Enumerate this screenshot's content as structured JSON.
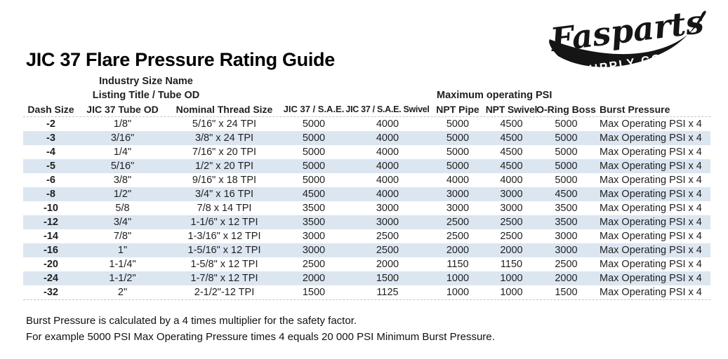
{
  "logo": {
    "brand": "Fasparts",
    "subtitle": "SUPPLY CO."
  },
  "title": "JIC 37 Flare Pressure Rating Guide",
  "table": {
    "stack_lines": [
      "Industry Size Name",
      "Listing Title / Tube OD"
    ],
    "psi_group_label": "Maximum operating PSI",
    "columns": [
      "Dash Size",
      "JIC 37 Tube OD",
      "Nominal Thread Size",
      "JIC 37 / S.A.E.",
      "JIC 37 / S.A.E. Swivel",
      "NPT Pipe",
      "NPT Swivel",
      "O-Ring Boss",
      "Burst Pressure"
    ],
    "rows": [
      [
        "-2",
        "1/8\"",
        "5/16\" x 24 TPI",
        "5000",
        "4000",
        "5000",
        "4500",
        "5000",
        "Max Operating PSI x 4"
      ],
      [
        "-3",
        "3/16\"",
        "3/8\" x 24 TPI",
        "5000",
        "4000",
        "5000",
        "4500",
        "5000",
        "Max Operating PSI x 4"
      ],
      [
        "-4",
        "1/4\"",
        "7/16\" x 20 TPI",
        "5000",
        "4000",
        "5000",
        "4500",
        "5000",
        "Max Operating PSI x 4"
      ],
      [
        "-5",
        "5/16\"",
        "1/2\" x 20 TPI",
        "5000",
        "4000",
        "5000",
        "4500",
        "5000",
        "Max Operating PSI x 4"
      ],
      [
        "-6",
        "3/8\"",
        "9/16\" x 18 TPI",
        "5000",
        "4000",
        "4000",
        "4000",
        "5000",
        "Max Operating PSI x 4"
      ],
      [
        "-8",
        "1/2\"",
        "3/4\" x 16 TPI",
        "4500",
        "4000",
        "3000",
        "3000",
        "4500",
        "Max Operating PSI x 4"
      ],
      [
        "-10",
        "5/8",
        "7/8 x 14 TPI",
        "3500",
        "3000",
        "3000",
        "3000",
        "3500",
        "Max Operating PSI x 4"
      ],
      [
        "-12",
        "3/4\"",
        "1-1/6\" x 12 TPI",
        "3500",
        "3000",
        "2500",
        "2500",
        "3500",
        "Max Operating PSI x 4"
      ],
      [
        "-14",
        "7/8\"",
        "1-3/16\" x 12 TPI",
        "3000",
        "2500",
        "2500",
        "2500",
        "3000",
        "Max Operating PSI x 4"
      ],
      [
        "-16",
        "1\"",
        "1-5/16\" x 12 TPI",
        "3000",
        "2500",
        "2000",
        "2000",
        "3000",
        "Max Operating PSI x 4"
      ],
      [
        "-20",
        "1-1/4\"",
        "1-5/8\" x 12 TPI",
        "2500",
        "2000",
        "1150",
        "1150",
        "2500",
        "Max Operating PSI x 4"
      ],
      [
        "-24",
        "1-1/2\"",
        "1-7/8\" x 12 TPI",
        "2000",
        "1500",
        "1000",
        "1000",
        "2000",
        "Max Operating PSI x 4"
      ],
      [
        "-32",
        "2\"",
        "2-1/2\"-12 TPI",
        "1500",
        "1125",
        "1000",
        "1000",
        "1500",
        "Max Operating PSI x 4"
      ]
    ]
  },
  "notes": {
    "line1": "Burst Pressure is calculated by a 4 times multiplier for the safety factor.",
    "line2": "For example 5000 PSI Max Operating Pressure times 4 equals 20 000 PSI Minimum Burst Pressure."
  },
  "colors": {
    "row_shade": "#dce6f1",
    "ink": "#1f1f1f",
    "logo_ink": "#151515"
  }
}
